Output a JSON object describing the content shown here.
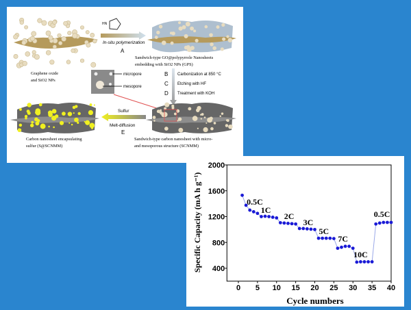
{
  "diagram": {
    "step_a_label": "In-situ polymerization",
    "step_a_letter": "A",
    "pyrrole_label": "HN",
    "start_label_1": "Graphene oxide",
    "start_label_2": "and SiO2 NPs",
    "gps_label_1": "Sandwich-type GO@polypyrrole Nanosheets",
    "gps_label_2": "embedding with SiO2 NPs (GPS)",
    "inset_micropore": "micropore",
    "inset_mesopore": "mesopore",
    "steps": [
      {
        "letter": "B",
        "text": "Carbonization at 850 °C"
      },
      {
        "letter": "C",
        "text": "Etching with HF"
      },
      {
        "letter": "D",
        "text": "Treatment with KOH"
      }
    ],
    "step_e_top": "Sulfur",
    "step_e_bottom": "Melt-diffusion",
    "step_e_letter": "E",
    "scnmm_label_1": "Sandwich-type carbon nanosheet with micro-",
    "scnmm_label_2": "and mesoporous structure (SCNMM)",
    "sscnmm_label_1": "Carbon nanosheet encapsulating",
    "sscnmm_label_2": "sulfur  (S@SCNMM)",
    "colors": {
      "graphene": "#b59a5c",
      "particle": "#e8dcc0",
      "polypyrrole": "#aebfcf",
      "carbon": "#6b6b6b",
      "sulfur": "#f0f020",
      "red_marker": "#e05050"
    }
  },
  "chart_data": {
    "type": "scatter",
    "xlabel": "Cycle numbers",
    "ylabel": "Specific Capacity (mA h g⁻¹)",
    "xlim": [
      -3,
      40
    ],
    "ylim": [
      200,
      2000
    ],
    "xticks": [
      0,
      5,
      10,
      15,
      20,
      25,
      30,
      35,
      40
    ],
    "yticks": [
      400,
      800,
      1200,
      1600,
      2000
    ],
    "grid": false,
    "marker_color": "#1a1ad6",
    "line_color": "#9aa8e8",
    "x": [
      1,
      2,
      3,
      4,
      5,
      6,
      7,
      8,
      9,
      10,
      11,
      12,
      13,
      14,
      15,
      16,
      17,
      18,
      19,
      20,
      21,
      22,
      23,
      24,
      25,
      26,
      27,
      28,
      29,
      30,
      31,
      32,
      33,
      34,
      35,
      36,
      37,
      38,
      39,
      40
    ],
    "y": [
      1530,
      1375,
      1300,
      1275,
      1250,
      1200,
      1205,
      1200,
      1190,
      1180,
      1105,
      1100,
      1095,
      1090,
      1085,
      1015,
      1015,
      1010,
      1005,
      1000,
      865,
      865,
      865,
      865,
      860,
      710,
      725,
      740,
      740,
      710,
      495,
      500,
      500,
      500,
      500,
      1085,
      1100,
      1110,
      1110,
      1110
    ],
    "annotations": [
      {
        "text": "0.5C",
        "x": 4.3,
        "y": 1428
      },
      {
        "text": "1C",
        "x": 7.2,
        "y": 1300
      },
      {
        "text": "2C",
        "x": 13.3,
        "y": 1205
      },
      {
        "text": "3C",
        "x": 18.3,
        "y": 1110
      },
      {
        "text": "5C",
        "x": 22.4,
        "y": 973
      },
      {
        "text": "7C",
        "x": 27.4,
        "y": 856
      },
      {
        "text": "10C",
        "x": 32,
        "y": 612
      },
      {
        "text": "0.5C",
        "x": 37.6,
        "y": 1237
      }
    ]
  }
}
